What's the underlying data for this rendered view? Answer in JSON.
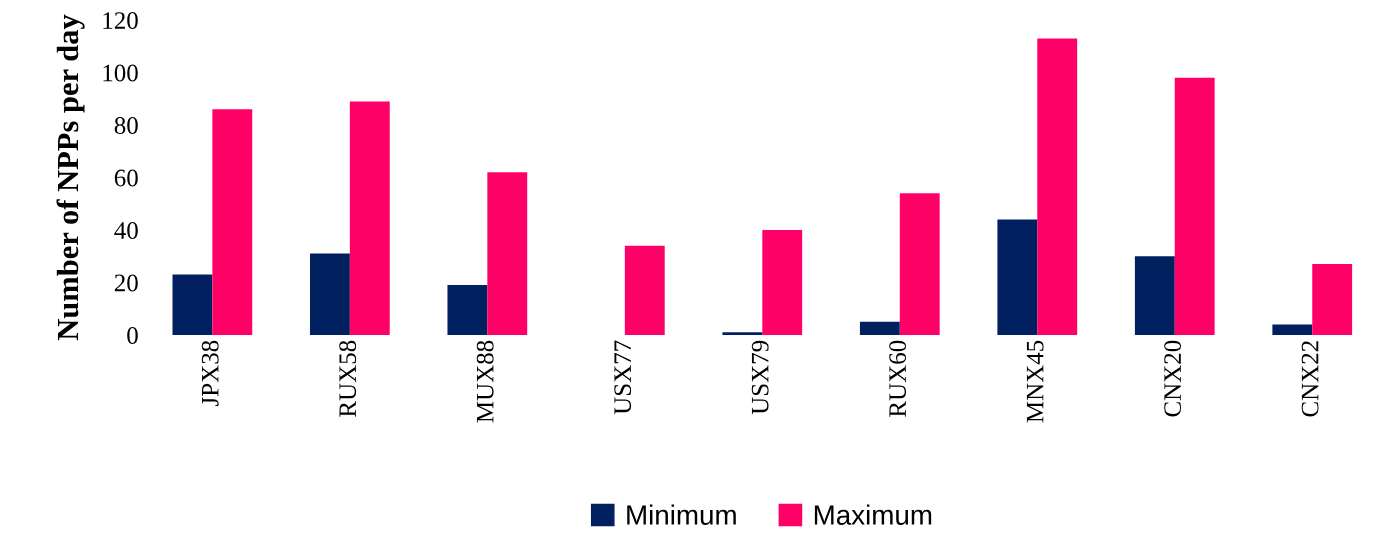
{
  "chart_data": {
    "type": "bar",
    "ylabel": "Number of NPPs per day",
    "categories": [
      "JPX38",
      "RUX58",
      "MUX88",
      "USX77",
      "USX79",
      "RUX60",
      "MNX45",
      "CNX20",
      "CNX22"
    ],
    "series": [
      {
        "name": "Minimum",
        "color": "#002060",
        "values": [
          23,
          31,
          19,
          0,
          1,
          5,
          44,
          30,
          4
        ]
      },
      {
        "name": "Maximum",
        "color": "#ff0066",
        "values": [
          86,
          89,
          62,
          34,
          40,
          54,
          113,
          98,
          27
        ]
      }
    ],
    "ylim": [
      0,
      120
    ],
    "yticks": [
      0,
      20,
      40,
      60,
      80,
      100,
      120
    ],
    "grid": false,
    "legend": "bottom"
  }
}
